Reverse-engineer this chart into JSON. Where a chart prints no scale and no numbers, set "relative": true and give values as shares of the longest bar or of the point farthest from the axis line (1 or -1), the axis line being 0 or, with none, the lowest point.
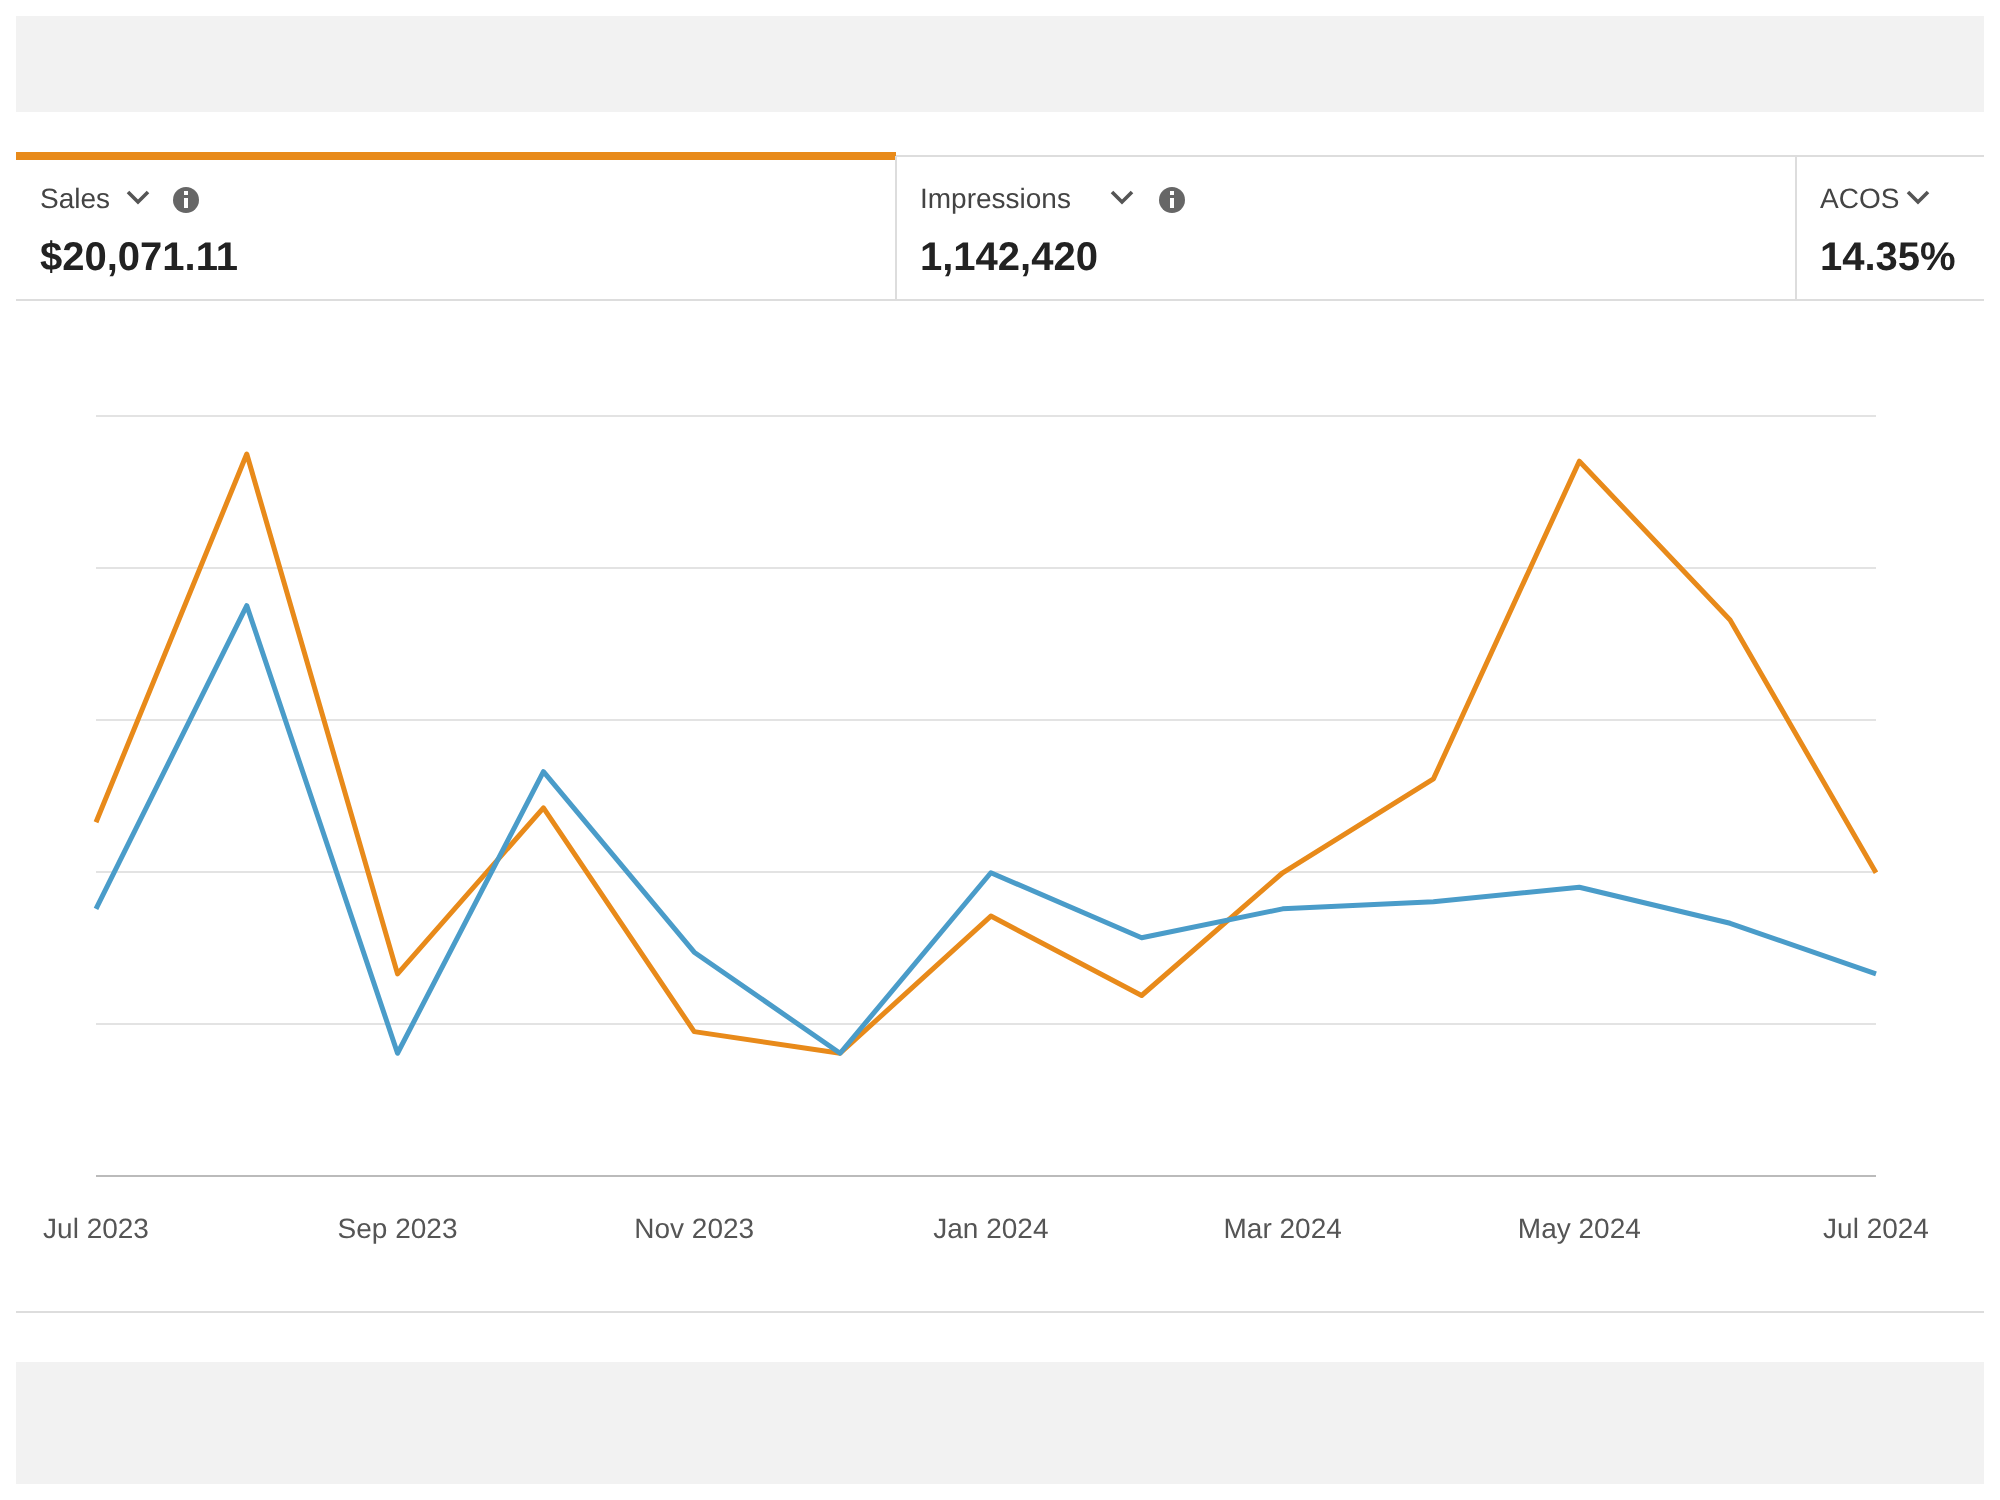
{
  "chart_data": {
    "type": "line",
    "relative": true,
    "annotations": [
      "Sales",
      "$20,071.11",
      "Impressions",
      "1,142,420",
      "ACOS",
      "14.35%"
    ],
    "x": [
      "2023-07",
      "2023-08",
      "2023-09",
      "2023-10",
      "2023-11",
      "2023-12",
      "2024-01",
      "2024-02",
      "2024-03",
      "2024-04",
      "2024-05",
      "2024-06",
      "2024-07"
    ],
    "xlim": [
      "2023-07",
      "2024-07"
    ],
    "xticks": [
      {
        "value": "2023-07",
        "label": "Jul 2023"
      },
      {
        "value": "2023-09",
        "label": "Sep 2023"
      },
      {
        "value": "2023-11",
        "label": "Nov 2023"
      },
      {
        "value": "2024-01",
        "label": "Jan 2024"
      },
      {
        "value": "2024-03",
        "label": "Mar 2024"
      },
      {
        "value": "2024-05",
        "label": "May 2024"
      },
      {
        "value": "2024-07",
        "label": "Jul 2024"
      }
    ],
    "series": [
      {
        "color": "#e88a1a",
        "values": [
          0.49,
          1.0,
          0.28,
          0.51,
          0.2,
          0.17,
          0.36,
          0.25,
          0.42,
          0.55,
          0.99,
          0.77,
          0.42
        ]
      },
      {
        "color": "#4a9cc9",
        "values": [
          0.37,
          0.79,
          0.17,
          0.56,
          0.31,
          0.17,
          0.42,
          0.33,
          0.37,
          0.38,
          0.4,
          0.35,
          0.28
        ]
      }
    ],
    "grid": "y",
    "marker": "none",
    "line_style": "solid"
  }
}
